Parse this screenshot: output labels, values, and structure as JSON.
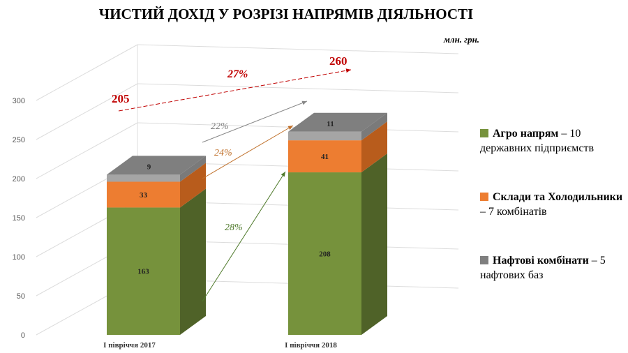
{
  "title": "ЧИСТИЙ ДОХІД У РОЗРІЗІ НАПРЯМІВ ДІЯЛЬНОСТІ",
  "unit": "млн. грн.",
  "colors": {
    "agro": "#76923c",
    "sklady": "#ed7d31",
    "nafta": "#a5a5a5"
  },
  "chart_data": {
    "type": "bar",
    "stacked": true,
    "categories": [
      "І півріччя 2017",
      "І півріччя 2018"
    ],
    "series": [
      {
        "name": "Агро напрям – 10 державних підприємств",
        "values": [
          163,
          208
        ]
      },
      {
        "name": "Склади та Холодильники – 7 комбінатів",
        "values": [
          33,
          41
        ]
      },
      {
        "name": "Нафтові комбінати – 5 нафтових баз",
        "values": [
          9,
          11
        ]
      }
    ],
    "totals": [
      "205",
      "260"
    ],
    "ylim": [
      0,
      300
    ],
    "yticks": [
      "0",
      "50",
      "100",
      "150",
      "200",
      "250",
      "300"
    ],
    "growth": {
      "total": "27%",
      "agro": "28%",
      "sklady": "24%",
      "nafta": "22%"
    },
    "legend": [
      {
        "bold": "Агро напрям",
        "rest": " – 10 державних підприємств"
      },
      {
        "bold": "Склади та Холодильники",
        "rest": " – 7 комбінатів"
      },
      {
        "bold": "Нафтові комбінати",
        "rest": " – 5 нафтових баз"
      }
    ],
    "legend_position": "right",
    "grid": true
  }
}
